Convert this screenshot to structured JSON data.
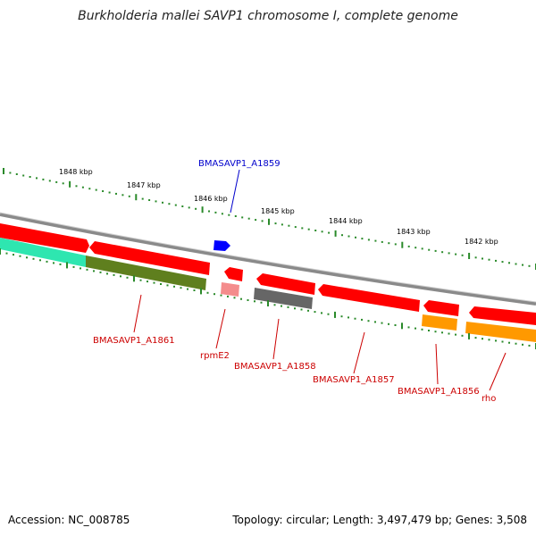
{
  "title": "Burkholderia mallei SAVP1 chromosome I, complete genome",
  "footer": {
    "accession": "Accession: NC_008785",
    "stats": "Topology: circular; Length: 3,497,479 bp; Genes: 3,508"
  },
  "colors": {
    "backbone": "#8a8a8a",
    "cds_forward": "#ff0000",
    "cds_reverse": "#ff0000",
    "gene_blue": "#0000ff",
    "rna_pink": "#f48c8c",
    "track_green": "#5f7f1e",
    "track_cyan": "#2ee6b0",
    "track_gray": "#666666",
    "track_orange": "#ff9900",
    "ticks": "#2a8a2a",
    "label_red": "#cc0000",
    "label_blue": "#0000cc"
  },
  "scale": {
    "labels": [
      "1848 kbp",
      "1847 kbp",
      "1846 kbp",
      "1845 kbp",
      "1844 kbp",
      "1843 kbp",
      "1842 kbp"
    ]
  },
  "genes": [
    {
      "name": "BMASAVP1_A1859",
      "color": "blue"
    },
    {
      "name": "BMASAVP1_A1861",
      "color": "red"
    },
    {
      "name": "rpmE2",
      "color": "red"
    },
    {
      "name": "BMASAVP1_A1858",
      "color": "red"
    },
    {
      "name": "BMASAVP1_A1857",
      "color": "red"
    },
    {
      "name": "BMASAVP1_A1856",
      "color": "red"
    },
    {
      "name": "rho",
      "color": "red"
    }
  ]
}
